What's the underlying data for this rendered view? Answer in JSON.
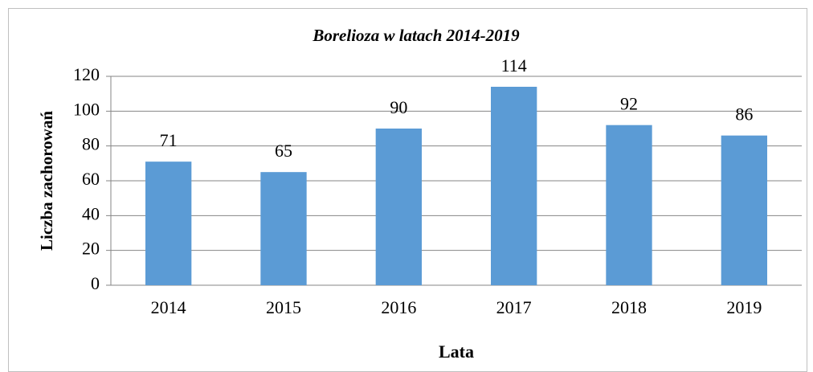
{
  "chart_data": {
    "type": "bar",
    "title": "Borelioza w latach 2014-2019",
    "x_label": "Lata",
    "y_label": "Liczba zachorowań",
    "categories": [
      "2014",
      "2015",
      "2016",
      "2017",
      "2018",
      "2019"
    ],
    "values": [
      71,
      65,
      90,
      114,
      92,
      86
    ],
    "color": "#5b9bd5",
    "ylim": [
      0,
      120
    ],
    "yticks": [
      0,
      20,
      40,
      60,
      80,
      100,
      120
    ],
    "grid": true
  }
}
